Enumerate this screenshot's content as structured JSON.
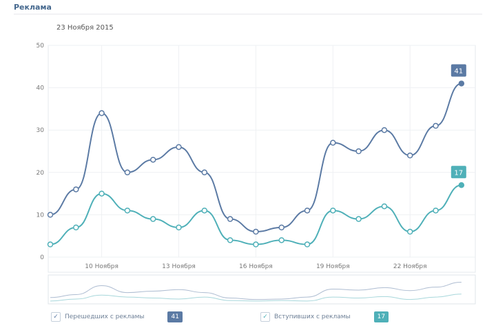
{
  "header": {
    "title": "Реклама",
    "date": "23 Ноября 2015"
  },
  "legend": [
    {
      "label": "Перешедших с рекламы",
      "badge": "41",
      "color": "#5b7aa4"
    },
    {
      "label": "Вступивших с рекламы",
      "badge": "17",
      "color": "#4fb0b8"
    }
  ],
  "chart_data": {
    "type": "line",
    "x": [
      8,
      9,
      10,
      11,
      12,
      13,
      14,
      15,
      16,
      17,
      18,
      19,
      20,
      21,
      22,
      23,
      24
    ],
    "xticks": [
      {
        "day": 10,
        "label": "10 Ноября"
      },
      {
        "day": 13,
        "label": "13 Ноября"
      },
      {
        "day": 16,
        "label": "16 Ноября"
      },
      {
        "day": 19,
        "label": "19 Ноября"
      },
      {
        "day": 22,
        "label": "22 Ноября"
      }
    ],
    "yticks": [
      0,
      10,
      20,
      30,
      40,
      50
    ],
    "ylim": [
      0,
      50
    ],
    "series": [
      {
        "name": "Перешедших с рекламы",
        "color": "#5b7aa4",
        "values": [
          10,
          16,
          34,
          20,
          23,
          26,
          20,
          9,
          6,
          7,
          11,
          27,
          25,
          30,
          24,
          31,
          41
        ],
        "end_label": "41"
      },
      {
        "name": "Вступивших с рекламы",
        "color": "#4fb0b8",
        "values": [
          3,
          7,
          15,
          11,
          9,
          7,
          11,
          4,
          3,
          4,
          3,
          11,
          9,
          12,
          6,
          11,
          17
        ],
        "end_label": "17"
      }
    ]
  }
}
